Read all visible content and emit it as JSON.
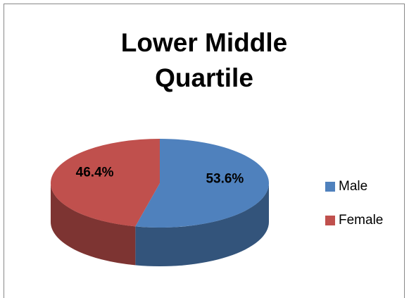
{
  "chart_data": {
    "type": "pie",
    "title": "Lower Middle Quartile",
    "categories": [
      "Male",
      "Female"
    ],
    "values": [
      53.6,
      46.4
    ],
    "value_labels": [
      "53.6%",
      "46.4%"
    ],
    "colors": [
      "#4f81bd",
      "#c0504d"
    ],
    "legend": "right"
  }
}
